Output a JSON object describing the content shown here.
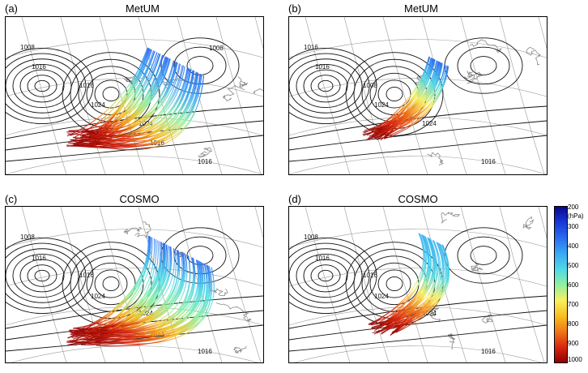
{
  "panels": [
    {
      "label": "(a)",
      "title": "MetUM"
    },
    {
      "label": "(b)",
      "title": "MetUM"
    },
    {
      "label": "(c)",
      "title": "COSMO"
    },
    {
      "label": "(d)",
      "title": "COSMO"
    }
  ],
  "isobar_labels": {
    "a": [
      "1008",
      "1016",
      "1024",
      "1016",
      "1016",
      "1024",
      "1016",
      "1008"
    ],
    "b": [
      "1016",
      "1008",
      "1024",
      "1016",
      "1016",
      "1024"
    ],
    "c": [
      "1008",
      "1016",
      "1024",
      "1016",
      "1016",
      "1024",
      "1024"
    ],
    "d": [
      "1008",
      "1016",
      "1024",
      "1016",
      "1016",
      "1024"
    ]
  },
  "colorbar": {
    "ticks": [
      "200",
      "300",
      "400",
      "500",
      "600",
      "700",
      "800",
      "900",
      "1000"
    ],
    "unit": "(hPa)",
    "colors": [
      "#08088a",
      "#1838d8",
      "#2a6cf0",
      "#3aa8f4",
      "#4fd8e8",
      "#8ef0a0",
      "#f8f060",
      "#f8c020",
      "#f07818",
      "#d82810",
      "#900000"
    ]
  }
}
